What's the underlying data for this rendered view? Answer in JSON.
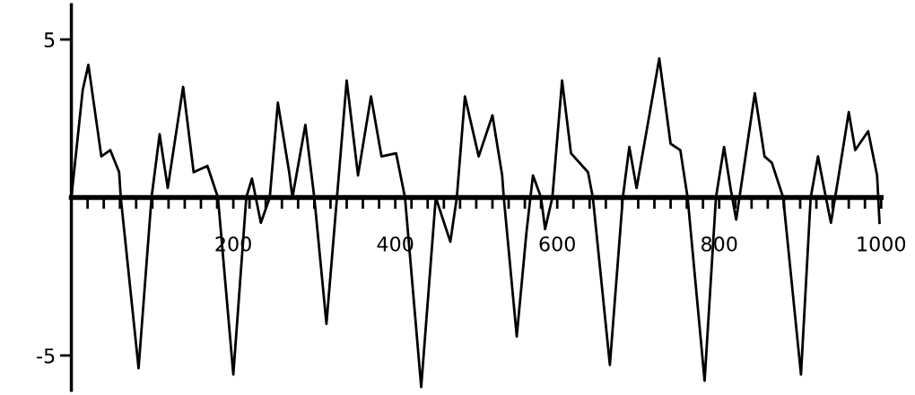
{
  "chart_data": {
    "type": "line",
    "color": "#000000",
    "marker": "none",
    "line_style": "solid",
    "grid": false,
    "legend": false,
    "x": [
      0,
      14,
      21,
      37,
      48,
      59,
      61,
      83,
      99,
      109,
      119,
      138,
      151,
      168,
      181,
      200,
      216,
      223,
      234,
      245,
      255,
      269,
      273,
      289,
      300,
      315,
      328,
      340,
      354,
      370,
      383,
      401,
      412,
      432,
      450,
      468,
      476,
      486,
      503,
      520,
      532,
      534,
      550,
      562,
      570,
      580,
      585,
      594,
      606,
      617,
      638,
      644,
      665,
      681,
      689,
      698,
      726,
      740,
      752,
      761,
      782,
      796,
      806,
      814,
      821,
      844,
      856,
      865,
      879,
      901,
      913,
      922,
      931,
      938,
      947,
      960,
      968,
      984,
      995,
      998
    ],
    "values": [
      0,
      3.4,
      4.2,
      1.3,
      1.5,
      0.8,
      0,
      -5.4,
      0,
      2.0,
      0.3,
      3.5,
      0.8,
      1.0,
      0,
      -5.6,
      0,
      0.6,
      -0.8,
      0,
      3.0,
      0.8,
      0,
      2.3,
      0,
      -4.0,
      0,
      3.7,
      0.7,
      3.2,
      1.3,
      1.4,
      0,
      -6.0,
      0,
      -1.4,
      0,
      3.2,
      1.3,
      2.6,
      0.7,
      0,
      -4.4,
      -1.1,
      0.7,
      0,
      -1.0,
      0,
      3.7,
      1.4,
      0.8,
      0,
      -5.3,
      0,
      1.6,
      0.3,
      4.4,
      1.7,
      1.5,
      0,
      -5.8,
      0,
      1.6,
      0.3,
      -0.7,
      3.3,
      1.3,
      1.1,
      0,
      -5.6,
      0,
      1.3,
      0.1,
      -0.8,
      0.6,
      2.7,
      1.5,
      2.1,
      0.7,
      -0.8
    ],
    "xlim": [
      0,
      1000
    ],
    "ylim": [
      -6.1,
      6.1
    ],
    "xticks": [
      {
        "value": 20,
        "label": null
      },
      {
        "value": 40,
        "label": null
      },
      {
        "value": 60,
        "label": null
      },
      {
        "value": 80,
        "label": null
      },
      {
        "value": 100,
        "label": null
      },
      {
        "value": 120,
        "label": null
      },
      {
        "value": 140,
        "label": null
      },
      {
        "value": 160,
        "label": null
      },
      {
        "value": 180,
        "label": null
      },
      200,
      {
        "value": 220,
        "label": null
      },
      {
        "value": 240,
        "label": null
      },
      {
        "value": 260,
        "label": null
      },
      {
        "value": 280,
        "label": null
      },
      {
        "value": 300,
        "label": null
      },
      {
        "value": 320,
        "label": null
      },
      {
        "value": 340,
        "label": null
      },
      {
        "value": 360,
        "label": null
      },
      {
        "value": 380,
        "label": null
      },
      400,
      {
        "value": 420,
        "label": null
      },
      {
        "value": 440,
        "label": null
      },
      {
        "value": 460,
        "label": null
      },
      {
        "value": 480,
        "label": null
      },
      {
        "value": 500,
        "label": null
      },
      {
        "value": 520,
        "label": null
      },
      {
        "value": 540,
        "label": null
      },
      {
        "value": 560,
        "label": null
      },
      {
        "value": 580,
        "label": null
      },
      600,
      {
        "value": 620,
        "label": null
      },
      {
        "value": 640,
        "label": null
      },
      {
        "value": 660,
        "label": null
      },
      {
        "value": 680,
        "label": null
      },
      {
        "value": 700,
        "label": null
      },
      {
        "value": 720,
        "label": null
      },
      {
        "value": 740,
        "label": null
      },
      {
        "value": 760,
        "label": null
      },
      {
        "value": 780,
        "label": null
      },
      800,
      {
        "value": 820,
        "label": null
      },
      {
        "value": 840,
        "label": null
      },
      {
        "value": 860,
        "label": null
      },
      {
        "value": 880,
        "label": null
      },
      {
        "value": 900,
        "label": null
      },
      {
        "value": 920,
        "label": null
      },
      {
        "value": 940,
        "label": null
      },
      {
        "value": 960,
        "label": null
      },
      {
        "value": 980,
        "label": null
      },
      1000
    ],
    "yticks": [
      -5,
      5
    ]
  }
}
